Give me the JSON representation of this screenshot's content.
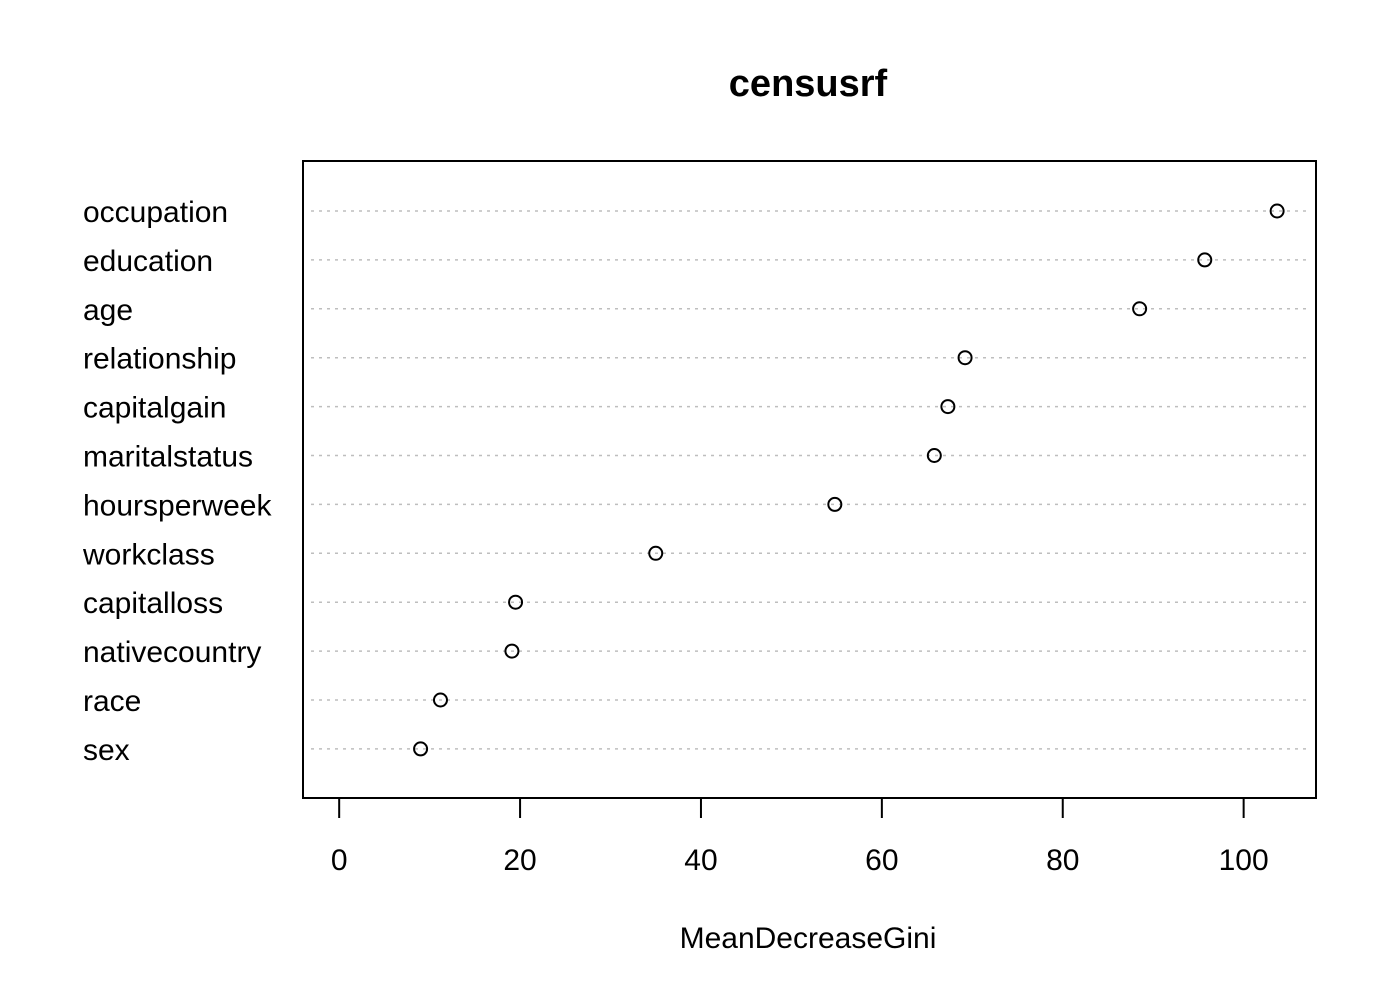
{
  "chart_data": {
    "type": "scatter",
    "title": "censusrf",
    "xlabel": "MeanDecreaseGini",
    "ylabel": "",
    "xlim": [
      -4,
      108
    ],
    "x_ticks": [
      0,
      20,
      40,
      60,
      80,
      100
    ],
    "x_tick_labels": [
      "0",
      "20",
      "40",
      "60",
      "80",
      "100"
    ],
    "grid": "dotted horizontal guide lines",
    "legend": "none",
    "colors": {
      "points": "#000000",
      "guides": "#bebebe",
      "frame": "#000000"
    },
    "categories": [
      "occupation",
      "education",
      "age",
      "relationship",
      "capitalgain",
      "maritalstatus",
      "hoursperweek",
      "workclass",
      "capitalloss",
      "nativecountry",
      "race",
      "sex"
    ],
    "values": [
      103.7,
      95.7,
      88.5,
      69.2,
      67.3,
      65.8,
      54.8,
      35.0,
      19.5,
      19.1,
      11.2,
      9.0
    ]
  }
}
